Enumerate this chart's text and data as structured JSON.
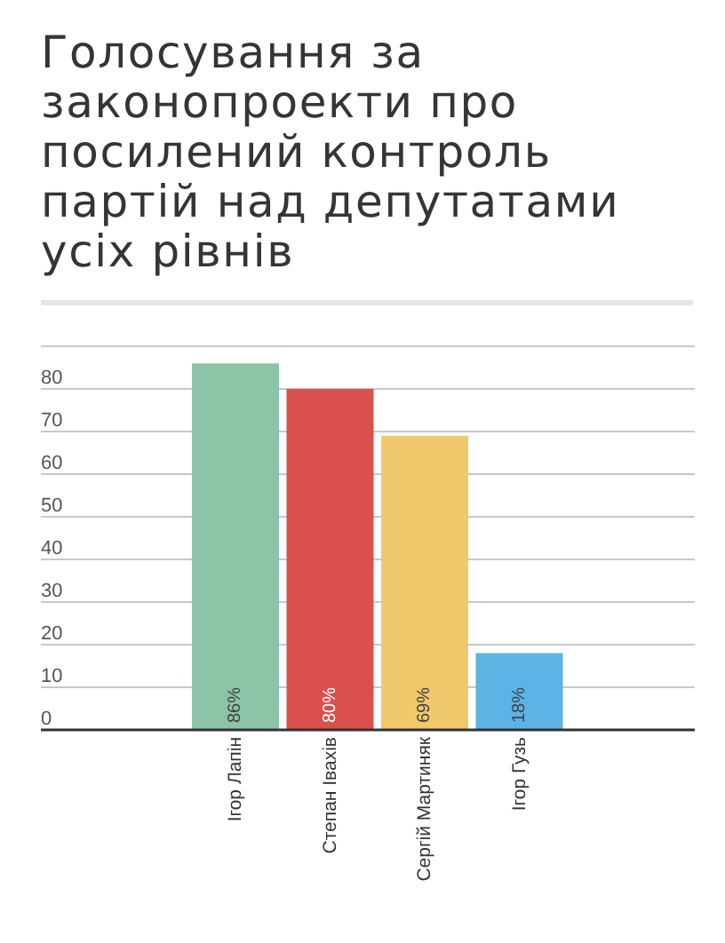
{
  "chart_data": {
    "type": "bar",
    "title": "Голосування за законопроекти про посилений контроль партій над депутатами усіх рівнів",
    "categories": [
      "Ігор Лапін",
      "Степан Івахів",
      "Сергій Мартиняк",
      "Ігор Гузь"
    ],
    "values": [
      86,
      80,
      69,
      18
    ],
    "colors": [
      "#8cc4a8",
      "#d9504f",
      "#efc96b",
      "#5cb4e4"
    ],
    "value_labels": [
      "86%",
      "80%",
      "69%",
      "18%"
    ],
    "ylim": [
      0,
      90
    ],
    "yticks": [
      0,
      10,
      20,
      30,
      40,
      50,
      60,
      70,
      80
    ],
    "grid": "y"
  }
}
